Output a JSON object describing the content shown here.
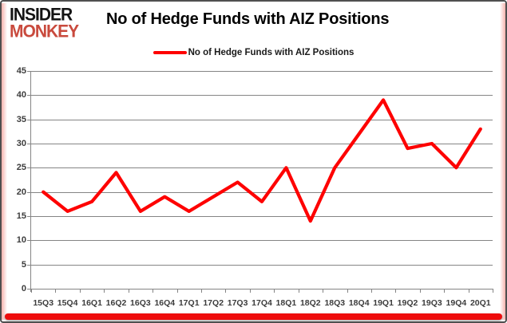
{
  "header": {
    "logo_line1": "INSIDER",
    "logo_line2": "MONKEY",
    "title": "No of Hedge Funds with AIZ Positions"
  },
  "legend": {
    "label": "No of Hedge Funds with AIZ Positions"
  },
  "chart_data": {
    "type": "line",
    "title": "No of Hedge Funds with AIZ Positions",
    "categories": [
      "15Q3",
      "15Q4",
      "16Q1",
      "16Q2",
      "16Q3",
      "16Q4",
      "17Q1",
      "17Q2",
      "17Q3",
      "17Q4",
      "18Q1",
      "18Q2",
      "18Q3",
      "18Q4",
      "19Q1",
      "19Q2",
      "19Q3",
      "19Q4",
      "20Q1"
    ],
    "series": [
      {
        "name": "No of Hedge Funds with AIZ Positions",
        "values": [
          20,
          16,
          18,
          24,
          16,
          19,
          16,
          19,
          22,
          18,
          25,
          14,
          25,
          32,
          39,
          29,
          30,
          25,
          33
        ]
      }
    ],
    "xlabel": "",
    "ylabel": "",
    "ylim": [
      0,
      45
    ],
    "yticks": [
      0,
      5,
      10,
      15,
      20,
      25,
      30,
      35,
      40,
      45
    ],
    "grid": true,
    "legend_position": "top-center",
    "line_color": "#fe0000",
    "grid_color": "#858585",
    "axis_label_color": "#3c3c3c"
  },
  "colors": {
    "logo_black": "#141414",
    "logo_red": "#c94a3d",
    "accent_red": "#ee0c0c",
    "frame_border": "#4f4f4f",
    "background": "#ffffff"
  }
}
